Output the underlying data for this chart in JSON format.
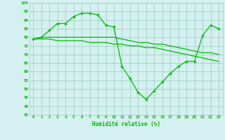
{
  "x": [
    0,
    1,
    2,
    3,
    4,
    5,
    6,
    7,
    8,
    9,
    10,
    11,
    12,
    13,
    14,
    15,
    16,
    17,
    18,
    19,
    20,
    21,
    22,
    23
  ],
  "line1": [
    79,
    80,
    84,
    88,
    88,
    92,
    94,
    94,
    93,
    87,
    86,
    63,
    56,
    48,
    44,
    49,
    54,
    59,
    63,
    66,
    66,
    81,
    87,
    85
  ],
  "line2": [
    79,
    80,
    80,
    80,
    80,
    80,
    80,
    80,
    80,
    80,
    80,
    79,
    78,
    77,
    77,
    76,
    76,
    75,
    74,
    73,
    72,
    71,
    71,
    70
  ],
  "line3": [
    79,
    79,
    79,
    78,
    78,
    78,
    78,
    77,
    77,
    77,
    76,
    76,
    75,
    75,
    74,
    74,
    73,
    72,
    71,
    70,
    69,
    68,
    67,
    66
  ],
  "bg_color": "#d4f0f0",
  "grid_color": "#99ccbb",
  "line_color": "#00bb00",
  "xlabel": "Humidité relative (%)",
  "ylim": [
    35,
    100
  ],
  "xlim": [
    -0.5,
    23.5
  ],
  "yticks": [
    35,
    40,
    45,
    50,
    55,
    60,
    65,
    70,
    75,
    80,
    85,
    90,
    95,
    100
  ],
  "xticks": [
    0,
    1,
    2,
    3,
    4,
    5,
    6,
    7,
    8,
    9,
    10,
    11,
    12,
    13,
    14,
    15,
    16,
    17,
    18,
    19,
    20,
    21,
    22,
    23
  ]
}
